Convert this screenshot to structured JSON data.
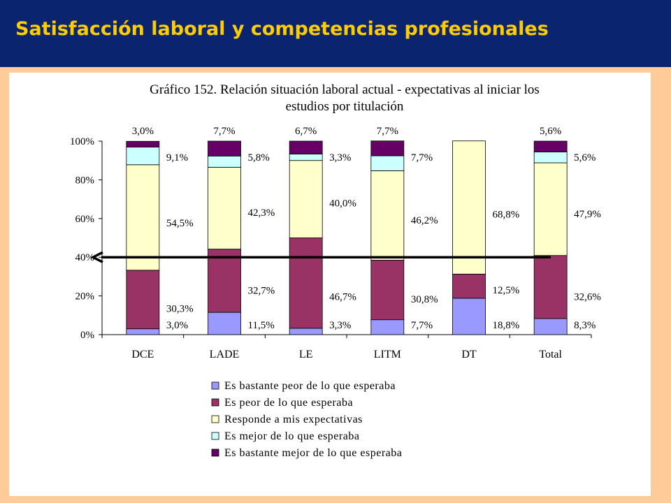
{
  "header": {
    "title": "Satisfacción laboral y competencias profesionales"
  },
  "chart_data": {
    "type": "bar",
    "stacked": true,
    "title_lines": [
      "Gráfico 152. Relación situación laboral actual - expectativas al iniciar los",
      "estudios por titulación"
    ],
    "categories": [
      "DCE",
      "LADE",
      "LE",
      "LITM",
      "DT",
      "Total"
    ],
    "y_ticks": [
      "0%",
      "20%",
      "40%",
      "60%",
      "80%",
      "100%"
    ],
    "ylim": [
      0,
      100
    ],
    "legend_position": "bottom",
    "series": [
      {
        "name": "Es bastante peor de lo que esperaba",
        "color": "#9999ff",
        "values": [
          3.0,
          11.5,
          3.3,
          7.7,
          18.8,
          8.3
        ],
        "labels": [
          "3,0%",
          "11,5%",
          "3,3%",
          "7,7%",
          "18,8%",
          "8,3%"
        ]
      },
      {
        "name": "Es peor de lo que esperaba",
        "color": "#993366",
        "values": [
          30.3,
          32.7,
          46.7,
          30.8,
          12.5,
          32.6
        ],
        "labels": [
          "30,3%",
          "32,7%",
          "46,7%",
          "30,8%",
          "12,5%",
          "32,6%"
        ]
      },
      {
        "name": "Responde a mis expectativas",
        "color": "#ffffcc",
        "values": [
          54.5,
          42.3,
          40.0,
          46.2,
          68.8,
          47.9
        ],
        "labels": [
          "54,5%",
          "42,3%",
          "40,0%",
          "46,2%",
          "68,8%",
          "47,9%"
        ]
      },
      {
        "name": "Es mejor de lo que esperaba",
        "color": "#ccffff",
        "values": [
          9.1,
          5.8,
          3.3,
          7.7,
          0,
          5.6
        ],
        "labels": [
          "9,1%",
          "5,8%",
          "3,3%",
          "7,7%",
          "",
          "5,6%"
        ]
      },
      {
        "name": "Es bastante mejor de lo que esperaba",
        "color": "#660066",
        "values": [
          3.0,
          7.7,
          6.7,
          7.7,
          0,
          5.6
        ],
        "labels": [
          "3,0%",
          "7,7%",
          "6,7%",
          "7,7%",
          "",
          "5,6%"
        ]
      }
    ],
    "annotation_arrow": {
      "y_value": 40,
      "direction": "left"
    }
  }
}
